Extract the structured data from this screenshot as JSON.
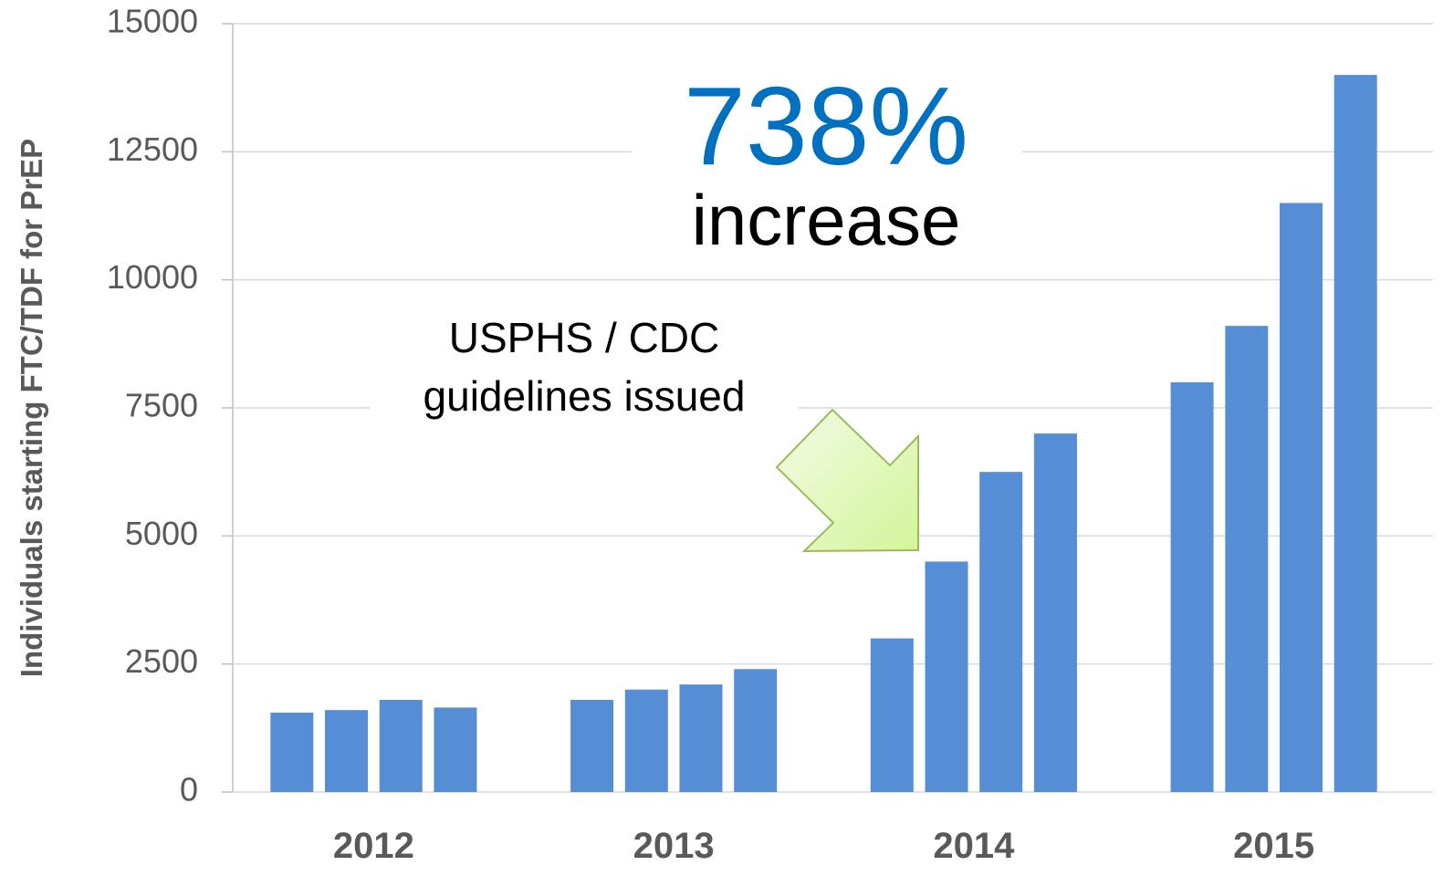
{
  "chart_data": {
    "type": "bar",
    "y_label": "Individuals starting FTC/TDF for PrEP",
    "categories": [
      "2012",
      "2013",
      "2014",
      "2015"
    ],
    "values": [
      [
        1550,
        1600,
        1800,
        1650
      ],
      [
        1800,
        2000,
        2100,
        2400
      ],
      [
        3000,
        4500,
        6250,
        7000
      ],
      [
        8000,
        9100,
        11500,
        14000
      ]
    ],
    "color": "#558ed5",
    "ylim": [
      0,
      15000
    ],
    "yticks": [
      0,
      2500,
      5000,
      7500,
      10000,
      12500,
      15000
    ],
    "grid": true,
    "annotations": {
      "headline": "738%",
      "headline_sub": "increase",
      "note_line1": "USPHS / CDC",
      "note_line2": "guidelines issued"
    }
  }
}
